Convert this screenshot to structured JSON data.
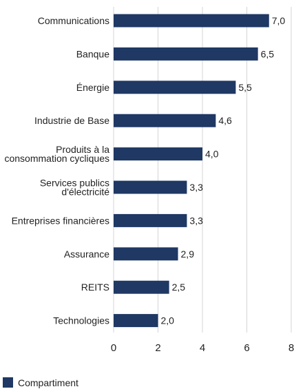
{
  "chart_data": {
    "type": "bar",
    "orientation": "horizontal",
    "categories": [
      "Communications",
      "Banque",
      "Énergie",
      "Industrie de Base",
      "Produits à la consommation cycliques",
      "Services publics d'électricité",
      "Entreprises financières",
      "Assurance",
      "REITS",
      "Technologies"
    ],
    "category_lines": [
      [
        "Communications"
      ],
      [
        "Banque"
      ],
      [
        "Énergie"
      ],
      [
        "Industrie de Base"
      ],
      [
        "Produits à la",
        "consommation cycliques"
      ],
      [
        "Services publics",
        "d'électricité"
      ],
      [
        "Entreprises financières"
      ],
      [
        "Assurance"
      ],
      [
        "REITS"
      ],
      [
        "Technologies"
      ]
    ],
    "series": [
      {
        "name": "Compartiment",
        "values": [
          7.0,
          6.5,
          5.5,
          4.6,
          4.0,
          3.3,
          3.3,
          2.9,
          2.5,
          2.0
        ],
        "value_labels": [
          "7,0",
          "6,5",
          "5,5",
          "4,6",
          "4,0",
          "3,3",
          "3,3",
          "2,9",
          "2,5",
          "2,0"
        ],
        "color": "#1f3864"
      }
    ],
    "xlim": [
      0,
      8
    ],
    "x_ticks": [
      0,
      2,
      4,
      6,
      8
    ],
    "grid": true,
    "legend_position": "bottom-left",
    "title": "",
    "xlabel": "",
    "ylabel": ""
  }
}
